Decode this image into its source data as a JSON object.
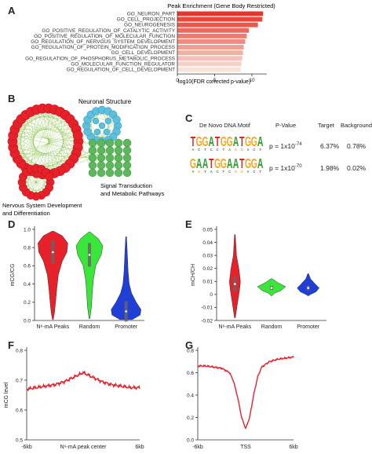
{
  "panels": {
    "A": "A",
    "B": "B",
    "C": "C",
    "D": "D",
    "E": "E",
    "F": "F",
    "G": "G"
  },
  "panel_a": {
    "title": "Peak Enrichment (Gene Body Restricted)",
    "xlabel": "-log10(FDR corrected p-value)"
  },
  "panel_b": {
    "label_neuronal": "Neuronal Structure",
    "label_signal_1": "Signal Transduction",
    "label_signal_2": "and Metabolic Pathways",
    "label_nervous_1": "Nervous System Development",
    "label_nervous_2": "and Differentiation",
    "colors": {
      "red": "#e8202a",
      "blue": "#5bc0de",
      "green": "#5cb85c",
      "edge": "#8bc34a"
    }
  },
  "panel_c": {
    "headers": [
      "De Novo DNA Motif",
      "P-Value",
      "Target",
      "Background"
    ],
    "rows": [
      {
        "motif": "TGGATGGATGGA",
        "p_base": "p = 1x10",
        "p_exp": "-74",
        "target": "6.37%",
        "background": "0.78%"
      },
      {
        "motif": "GAATGGAATGGA",
        "p_base": "p = 1x10",
        "p_exp": "-70",
        "target": "1.98%",
        "background": "0.02%"
      }
    ],
    "base_colors": {
      "A": "#2ca02c",
      "C": "#1f5fbf",
      "G": "#f5a623",
      "T": "#d62728"
    }
  },
  "chart_data": [
    {
      "panel": "A",
      "type": "bar",
      "title": "Peak Enrichment (Gene Body Restricted)",
      "xlabel": "-log10(FDR corrected p-value)",
      "categories": [
        "GO_NEURON_PART",
        "GO_CELL_PROJECTION",
        "GO_NEUROGENESIS",
        "GO_POSITIVE_REGULATION_OF_CATALYTIC_ACTIVITY",
        "GO_POSITIVE_REGULATION_OF_MOLECULAR_FUNCTION",
        "GO_REGULATION_OF_NERVOUS_SYSTEM_DEVELOPMENT",
        "GO_REGULATION_OF_PROTEIN_MODIFICATION_PROCESS",
        "GO_CELL_DEVELOPMENT",
        "GO_REGULATION_OF_PHOSPHORUS_METABOLIC_PROCESS",
        "GO_MOLECULAR_FUNCTION_REGULATOR",
        "GO_REGULATION_OF_CELL_DEVELOPMENT"
      ],
      "values": [
        11.5,
        11.4,
        10.8,
        9.6,
        9.3,
        9.1,
        8.9,
        8.8,
        8.7,
        8.6,
        8.5
      ],
      "xlim": [
        0,
        12
      ],
      "xticks": [
        "0",
        "5",
        "10"
      ],
      "grid": false
    },
    {
      "panel": "D",
      "type": "violin",
      "ylabel": "mCG/CG",
      "categories": [
        "N⁶-mA Peaks",
        "Random",
        "Promoter"
      ],
      "colors": [
        "#e8202a",
        "#39e639",
        "#1f3fd6"
      ],
      "medians": [
        0.75,
        0.72,
        0.1
      ],
      "ylim": [
        0,
        1.0
      ],
      "yticks": [
        "0.0",
        "0.2",
        "0.4",
        "0.6",
        "0.8",
        "1.0"
      ]
    },
    {
      "panel": "E",
      "type": "violin",
      "ylabel": "mCH/CH",
      "categories": [
        "N⁶-mA Peaks",
        "Random",
        "Promoter"
      ],
      "colors": [
        "#e8202a",
        "#39e639",
        "#1f3fd6"
      ],
      "medians": [
        0.008,
        0.005,
        0.005
      ],
      "ylim": [
        -0.02,
        0.05
      ],
      "yticks": [
        "-0.02",
        "-0.01",
        "0",
        "0.01",
        "0.02",
        "0.03",
        "0.04",
        "0.05"
      ]
    },
    {
      "panel": "F",
      "type": "line",
      "ylabel": "mCG level",
      "xlabel": "N⁶-mA peak center",
      "xticks": [
        "-6kb",
        "6kb"
      ],
      "ylim": [
        0.5,
        0.8
      ],
      "yticks": [
        "0.5",
        "0.6",
        "0.7",
        "0.8"
      ],
      "x": [
        -6,
        -5,
        -4,
        -3,
        -2,
        -1,
        0,
        1,
        2,
        3,
        4,
        5,
        6
      ],
      "values": [
        0.67,
        0.675,
        0.68,
        0.685,
        0.695,
        0.71,
        0.725,
        0.71,
        0.695,
        0.685,
        0.68,
        0.675,
        0.675
      ],
      "color": "#e8202a"
    },
    {
      "panel": "G",
      "type": "line",
      "ylabel": "mCG level",
      "xlabel": "TSS",
      "xticks": [
        "-6kb",
        "6kb"
      ],
      "ylim": [
        0.0,
        0.8
      ],
      "yticks": [
        "0.0",
        "0.2",
        "0.4",
        "0.6",
        "0.8"
      ],
      "x": [
        -6,
        -5,
        -4,
        -3,
        -2,
        -1.5,
        -1,
        -0.5,
        0,
        0.5,
        1,
        1.5,
        2,
        3,
        4,
        5,
        6
      ],
      "values": [
        0.66,
        0.66,
        0.65,
        0.64,
        0.6,
        0.52,
        0.38,
        0.2,
        0.1,
        0.2,
        0.4,
        0.56,
        0.65,
        0.7,
        0.72,
        0.73,
        0.74
      ],
      "color": "#e8202a"
    }
  ]
}
